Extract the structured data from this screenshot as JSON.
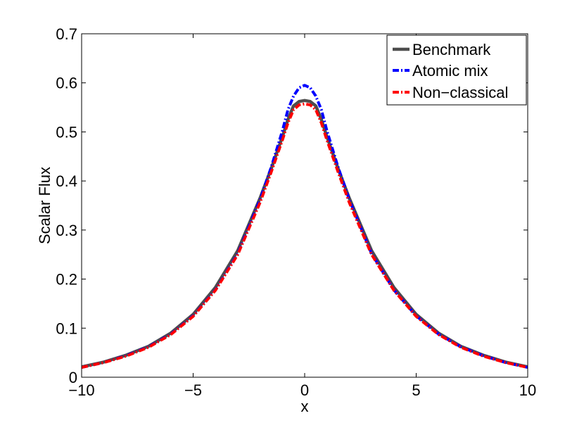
{
  "chart_data": {
    "type": "line",
    "title": "",
    "xlabel": "x",
    "ylabel": "Scalar Flux",
    "xlim": [
      -10,
      10
    ],
    "ylim": [
      0,
      0.7
    ],
    "xticks": [
      -10,
      -5,
      0,
      5,
      10
    ],
    "xtick_labels": [
      "−10",
      "−5",
      "0",
      "5",
      "10"
    ],
    "yticks": [
      0,
      0.1,
      0.2,
      0.3,
      0.4,
      0.5,
      0.6,
      0.7
    ],
    "ytick_labels": [
      "0",
      "0.1",
      "0.2",
      "0.3",
      "0.4",
      "0.5",
      "0.6",
      "0.7"
    ],
    "grid": false,
    "legend_position": "top-right",
    "x": [
      -10,
      -9,
      -8,
      -7,
      -6,
      -5,
      -4,
      -3,
      -2,
      -1.5,
      -1,
      -0.75,
      -0.5,
      -0.25,
      0,
      0.25,
      0.5,
      0.75,
      1,
      1.5,
      2,
      3,
      4,
      5,
      6,
      7,
      8,
      9,
      10
    ],
    "series": [
      {
        "name": "Benchmark",
        "color": "#4d4d4d",
        "style": "solid",
        "values": [
          0.021,
          0.031,
          0.045,
          0.063,
          0.09,
          0.128,
          0.183,
          0.258,
          0.365,
          0.425,
          0.49,
          0.525,
          0.553,
          0.562,
          0.564,
          0.562,
          0.553,
          0.525,
          0.49,
          0.425,
          0.365,
          0.258,
          0.183,
          0.128,
          0.09,
          0.063,
          0.045,
          0.031,
          0.021
        ]
      },
      {
        "name": "Atomic mix",
        "color": "#0000ff",
        "style": "dash-dot",
        "values": [
          0.02,
          0.03,
          0.044,
          0.062,
          0.088,
          0.125,
          0.178,
          0.252,
          0.362,
          0.428,
          0.502,
          0.545,
          0.573,
          0.59,
          0.595,
          0.59,
          0.573,
          0.545,
          0.502,
          0.428,
          0.362,
          0.252,
          0.178,
          0.125,
          0.088,
          0.062,
          0.044,
          0.03,
          0.02
        ]
      },
      {
        "name": "Non−classical",
        "color": "#ff0000",
        "style": "dash-dot",
        "values": [
          0.02,
          0.03,
          0.043,
          0.061,
          0.087,
          0.124,
          0.177,
          0.25,
          0.356,
          0.418,
          0.483,
          0.518,
          0.545,
          0.555,
          0.557,
          0.555,
          0.545,
          0.518,
          0.483,
          0.418,
          0.356,
          0.25,
          0.177,
          0.124,
          0.087,
          0.061,
          0.043,
          0.03,
          0.02
        ]
      }
    ]
  }
}
